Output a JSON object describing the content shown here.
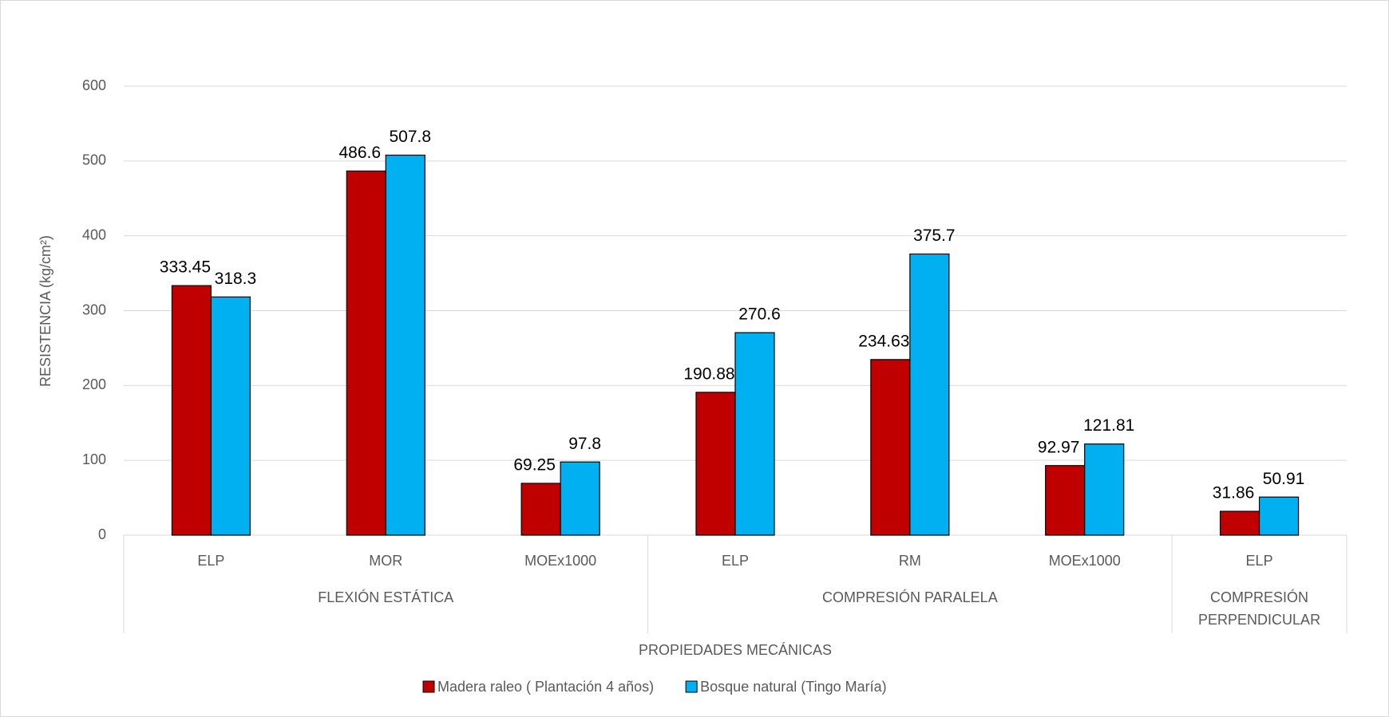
{
  "chart_data": {
    "type": "bar",
    "y_label": "RESISTENCIA  (kg/cm²)",
    "x_label": "PROPIEDADES MECÁNICAS",
    "groups": [
      {
        "name": "FLEXIÓN ESTÁTICA",
        "categories": [
          "ELP",
          "MOR",
          "MOEx1000"
        ]
      },
      {
        "name": "COMPRESIÓN PARALELA",
        "categories": [
          "ELP",
          "RM",
          "MOEx1000"
        ]
      },
      {
        "name": "COMPRESIÓN PERPENDICULAR",
        "categories": [
          "ELP"
        ]
      }
    ],
    "series": [
      {
        "name": "Madera raleo ( Plantación 4 años)",
        "color": "#c00000",
        "values": [
          333.45,
          486.6,
          69.25,
          190.88,
          234.63,
          92.97,
          31.86
        ]
      },
      {
        "name": "Bosque natural (Tingo María)",
        "color": "#00b0f0",
        "values": [
          318.3,
          507.8,
          97.8,
          270.6,
          375.7,
          121.81,
          50.91
        ]
      }
    ],
    "ylim": [
      0,
      600
    ],
    "yticks": [
      0,
      100,
      200,
      300,
      400,
      500,
      600
    ],
    "grid": true,
    "legend": "bottom"
  }
}
